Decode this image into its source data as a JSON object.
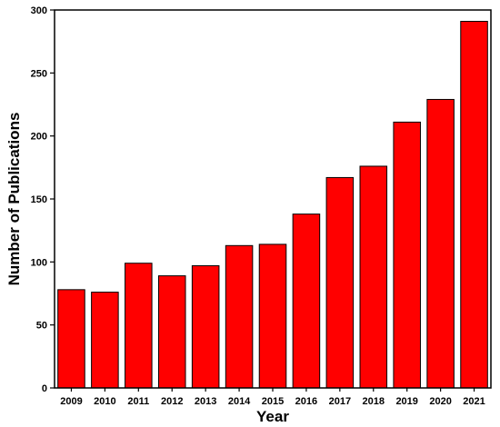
{
  "chart_data": {
    "type": "bar",
    "title": "",
    "xlabel": "Year",
    "ylabel": "Number of Publications",
    "categories": [
      "2009",
      "2010",
      "2011",
      "2012",
      "2013",
      "2014",
      "2015",
      "2016",
      "2017",
      "2018",
      "2019",
      "2020",
      "2021"
    ],
    "values": [
      78,
      76,
      99,
      89,
      97,
      113,
      114,
      138,
      167,
      176,
      211,
      229,
      291
    ],
    "ylim": [
      0,
      300
    ],
    "yticks": [
      0,
      50,
      100,
      150,
      200,
      250,
      300
    ],
    "grid": false,
    "legend": "none",
    "bar_color": "#ff0000",
    "bar_edge_color": "#000000"
  }
}
